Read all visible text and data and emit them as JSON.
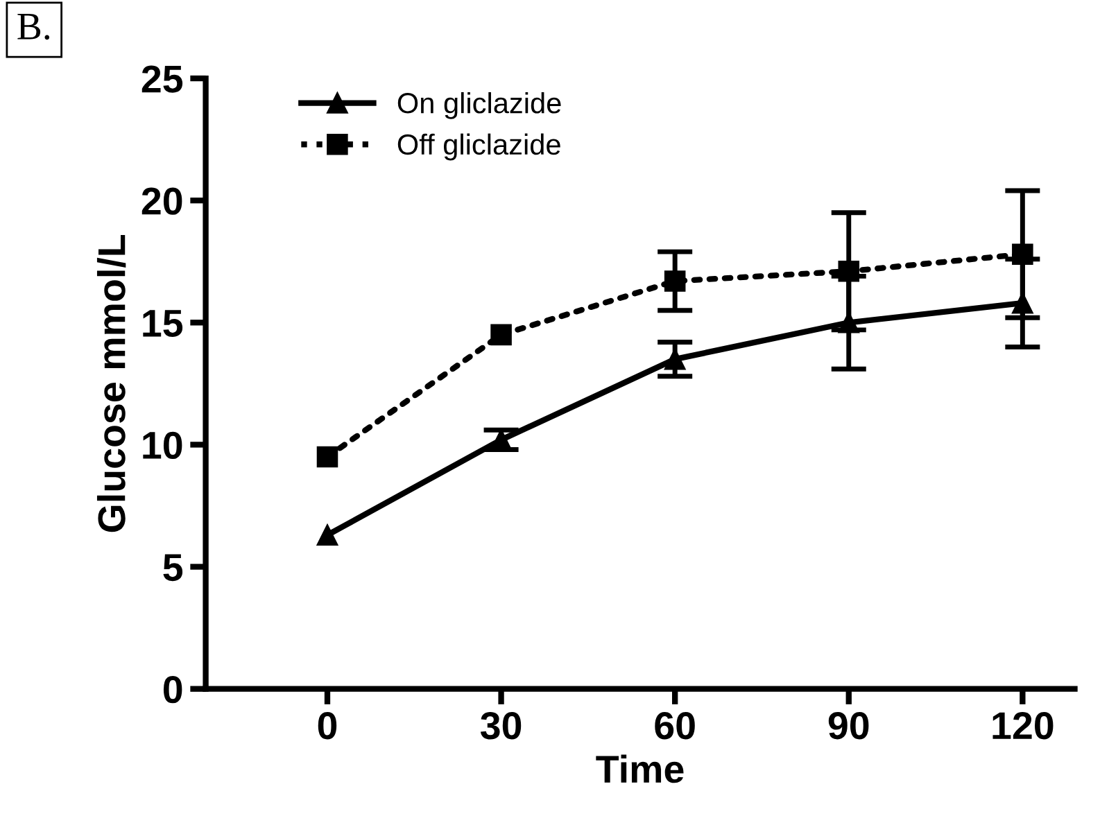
{
  "chart_data": {
    "type": "line",
    "xlabel": "Time",
    "ylabel": "Glucose mmol/L",
    "annotations": [
      "B."
    ],
    "x": [
      0,
      30,
      60,
      90,
      120
    ],
    "series": [
      {
        "name": "On gliclazide",
        "color": "#000000",
        "marker": "triangle",
        "line_style": "solid",
        "values": [
          6.3,
          10.2,
          13.5,
          15.0,
          15.8
        ],
        "errors": [
          null,
          0.4,
          0.7,
          1.9,
          1.8
        ]
      },
      {
        "name": "Off gliclazide",
        "color": "#000000",
        "marker": "square",
        "line_style": "dotted",
        "values": [
          9.5,
          14.5,
          16.7,
          17.1,
          17.8
        ],
        "errors": [
          null,
          null,
          1.2,
          2.4,
          2.6
        ]
      }
    ],
    "xlim": [
      -21,
      129
    ],
    "xticks": [
      0,
      30,
      60,
      90,
      120
    ],
    "ylim": [
      0,
      25
    ],
    "yticks": [
      0,
      5,
      10,
      15,
      20,
      25
    ],
    "grid": false,
    "legend": "top left"
  }
}
